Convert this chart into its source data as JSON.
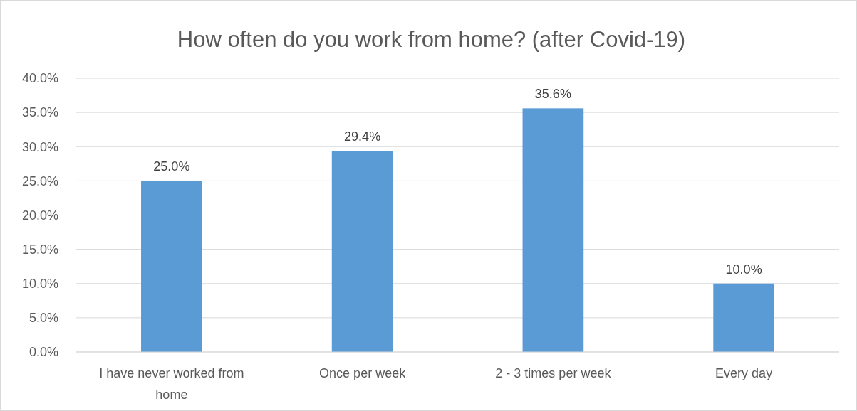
{
  "chart_data": {
    "type": "bar",
    "title": "How often do you work from home? (after Covid-19)",
    "categories": [
      "I have never worked from home",
      "Once per week",
      "2 - 3 times per week",
      "Every day"
    ],
    "values": [
      25.0,
      29.4,
      35.6,
      10.0
    ],
    "value_labels": [
      "25.0%",
      "29.4%",
      "35.6%",
      "10.0%"
    ],
    "color": "#5b9bd5",
    "ylim": [
      0,
      40
    ],
    "yticks": [
      {
        "value": 0,
        "label": "0.0%"
      },
      {
        "value": 5,
        "label": "5.0%"
      },
      {
        "value": 10,
        "label": "10.0%"
      },
      {
        "value": 15,
        "label": "15.0%"
      },
      {
        "value": 20,
        "label": "20.0%"
      },
      {
        "value": 25,
        "label": "25.0%"
      },
      {
        "value": 30,
        "label": "30.0%"
      },
      {
        "value": 35,
        "label": "35.0%"
      },
      {
        "value": 40,
        "label": "40.0%"
      }
    ],
    "grid": "y"
  }
}
